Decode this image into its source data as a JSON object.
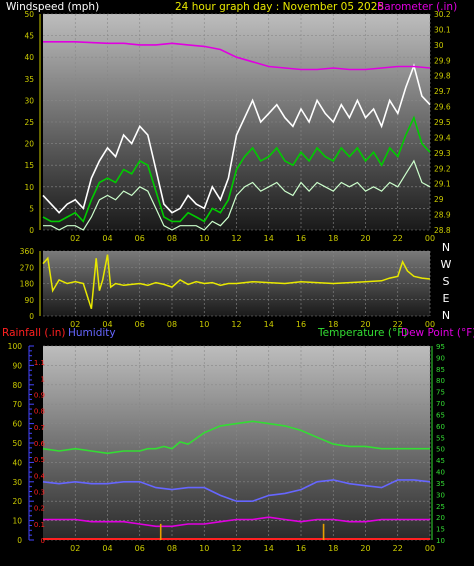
{
  "header": {
    "windspeed_label": "Windspeed (mph)",
    "graph_title": "24 hour graph day : November 05 2025",
    "barometer_label": "Barometer (.in)"
  },
  "colors": {
    "background": "#000000",
    "windspeed": "#ffffff",
    "windspeed_avg": "#00cc00",
    "wind_light": "#ccffcc",
    "barometer": "#e000e0",
    "direction": "#e8e800",
    "rainfall": "#ff2020",
    "humidity": "#6666ff",
    "temperature": "#33dd33",
    "dewpoint": "#e000e0",
    "rain_bar": "#e8a000",
    "axis_yellow": "#cccc00",
    "tick_blue": "#4444ff"
  },
  "chart_data": [
    {
      "type": "line",
      "title": "24 hour graph day : November 05 2025",
      "xlabel": "",
      "x_ticks": [
        "02",
        "04",
        "06",
        "08",
        "10",
        "12",
        "14",
        "16",
        "18",
        "20",
        "22",
        "00"
      ],
      "grid": true,
      "y_left": {
        "label": "Windspeed (mph)",
        "ticks": [
          0,
          5,
          10,
          15,
          20,
          25,
          30,
          35,
          40,
          45,
          50
        ],
        "range": [
          0,
          50
        ]
      },
      "y_right": {
        "label": "Barometer (.in)",
        "ticks": [
          "28.8",
          "28.9",
          "29",
          "29.1",
          "29.2",
          "29.3",
          "29.4",
          "29.5",
          "29.6",
          "29.7",
          "29.8",
          "29.9",
          "30",
          "30.1",
          "30.2"
        ],
        "range": [
          28.8,
          30.2
        ]
      },
      "series": [
        {
          "name": "Windspeed (mph)",
          "axis": "left",
          "x": [
            0,
            0.5,
            1,
            1.5,
            2,
            2.5,
            3,
            3.5,
            4,
            4.5,
            5,
            5.5,
            6,
            6.5,
            7,
            7.5,
            8,
            8.5,
            9,
            9.5,
            10,
            10.5,
            11,
            11.5,
            12,
            12.5,
            13,
            13.5,
            14,
            14.5,
            15,
            15.5,
            16,
            16.5,
            17,
            17.5,
            18,
            18.5,
            19,
            19.5,
            20,
            20.5,
            21,
            21.5,
            22,
            22.5,
            23,
            23.5,
            24
          ],
          "gust": [
            8,
            6,
            4,
            6,
            7,
            5,
            12,
            16,
            19,
            17,
            22,
            20,
            24,
            22,
            14,
            6,
            4,
            5,
            8,
            6,
            5,
            10,
            7,
            12,
            22,
            26,
            30,
            25,
            27,
            29,
            26,
            24,
            28,
            25,
            30,
            27,
            25,
            29,
            26,
            30,
            26,
            28,
            24,
            30,
            27,
            33,
            38,
            31,
            29
          ],
          "speed": [
            3,
            2,
            2,
            3,
            4,
            2,
            7,
            11,
            12,
            11,
            14,
            13,
            16,
            15,
            9,
            3,
            2,
            2,
            4,
            3,
            2,
            5,
            4,
            7,
            14,
            17,
            19,
            16,
            17,
            19,
            16,
            15,
            18,
            16,
            19,
            17,
            16,
            19,
            17,
            19,
            16,
            18,
            15,
            19,
            17,
            22,
            26,
            20,
            18
          ],
          "low": [
            1,
            1,
            0,
            1,
            1,
            0,
            3,
            7,
            8,
            7,
            9,
            8,
            10,
            9,
            5,
            1,
            0,
            1,
            1,
            1,
            0,
            2,
            1,
            3,
            8,
            10,
            11,
            9,
            10,
            11,
            9,
            8,
            11,
            9,
            11,
            10,
            9,
            11,
            10,
            11,
            9,
            10,
            9,
            11,
            10,
            13,
            16,
            11,
            10
          ]
        },
        {
          "name": "Barometer (.in)",
          "axis": "right",
          "x": [
            0,
            2,
            4,
            5,
            6,
            7,
            8,
            9,
            10,
            11,
            12,
            13,
            14,
            15,
            16,
            17,
            18,
            19,
            20,
            21,
            22,
            23,
            24
          ],
          "values": [
            30.02,
            30.02,
            30.01,
            30.01,
            30.0,
            30.0,
            30.01,
            30.0,
            29.99,
            29.97,
            29.92,
            29.89,
            29.86,
            29.85,
            29.84,
            29.84,
            29.85,
            29.84,
            29.84,
            29.85,
            29.86,
            29.86,
            29.85
          ]
        }
      ]
    },
    {
      "type": "line",
      "title": "",
      "x_ticks": [
        "02",
        "04",
        "06",
        "08",
        "10",
        "12",
        "14",
        "16",
        "18",
        "20",
        "22",
        "00"
      ],
      "grid": true,
      "y_left": {
        "label": "",
        "ticks": [
          0,
          90,
          180,
          270,
          360
        ],
        "range": [
          0,
          360
        ]
      },
      "y_right": {
        "label": "",
        "ticks": [
          "N",
          "W",
          "S",
          "E",
          "N"
        ]
      },
      "series": [
        {
          "name": "Wind direction",
          "x": [
            0,
            0.3,
            0.6,
            1,
            1.5,
            2,
            2.5,
            3,
            3.3,
            3.5,
            3.7,
            4,
            4.2,
            4.5,
            5,
            5.5,
            6,
            6.5,
            7,
            7.5,
            8,
            8.5,
            9,
            9.5,
            10,
            10.5,
            11,
            11.5,
            12,
            13,
            14,
            15,
            16,
            17,
            18,
            19,
            20,
            21,
            21.5,
            22,
            22.3,
            22.6,
            23,
            23.5,
            24
          ],
          "values": [
            290,
            320,
            140,
            200,
            180,
            190,
            180,
            40,
            320,
            140,
            200,
            340,
            160,
            180,
            170,
            175,
            180,
            170,
            185,
            175,
            160,
            200,
            175,
            190,
            180,
            185,
            170,
            180,
            180,
            190,
            185,
            180,
            190,
            185,
            180,
            185,
            190,
            195,
            210,
            220,
            300,
            250,
            220,
            210,
            205
          ]
        }
      ]
    },
    {
      "type": "line",
      "title": "",
      "x_ticks": [
        "02",
        "04",
        "06",
        "08",
        "10",
        "12",
        "14",
        "16",
        "18",
        "20",
        "22",
        "00"
      ],
      "grid": true,
      "legend": [
        "Rainfall (.in)",
        "Humidity",
        "Temperature (°F)",
        "Dew Point (°F)"
      ],
      "y_rain": {
        "label": "Rainfall (.in)",
        "ticks": [
          "0",
          "0.1",
          "0.2",
          "0.3",
          "0.4",
          "0.5",
          "0.6",
          "0.7",
          "0.8",
          "0.9",
          "1",
          "1.1"
        ],
        "range": [
          0,
          1.2
        ]
      },
      "y_humidity": {
        "label": "Humidity",
        "ticks": [
          0,
          10,
          20,
          30,
          40,
          50,
          60,
          70,
          80,
          90,
          100
        ],
        "range": [
          0,
          100
        ]
      },
      "y_temp": {
        "label": "Temperature (°F)",
        "ticks": [
          10,
          15,
          20,
          25,
          30,
          35,
          40,
          45,
          50,
          55,
          60,
          65,
          70,
          75,
          80,
          85,
          90,
          95
        ],
        "range": [
          10,
          95
        ]
      },
      "series": [
        {
          "name": "Temperature (°F)",
          "axis": "temp",
          "x": [
            0,
            1,
            2,
            3,
            4,
            5,
            6,
            6.5,
            7,
            7.5,
            8,
            8.5,
            9,
            10,
            11,
            12,
            13,
            14,
            15,
            16,
            17,
            18,
            19,
            20,
            21,
            22,
            23,
            24
          ],
          "values": [
            50,
            49,
            50,
            49,
            48,
            49,
            49,
            50,
            50,
            51,
            50,
            53,
            52,
            57,
            60,
            61,
            62,
            61,
            60,
            58,
            55,
            52,
            51,
            51,
            50,
            50,
            50,
            50
          ]
        },
        {
          "name": "Humidity",
          "axis": "humidity",
          "x": [
            0,
            1,
            2,
            3,
            4,
            5,
            6,
            7,
            8,
            9,
            10,
            11,
            12,
            13,
            14,
            15,
            16,
            17,
            18,
            19,
            20,
            21,
            22,
            23,
            24
          ],
          "values": [
            30,
            29,
            30,
            29,
            29,
            30,
            30,
            27,
            26,
            27,
            27,
            23,
            20,
            20,
            23,
            24,
            26,
            30,
            31,
            29,
            28,
            27,
            31,
            31,
            30
          ]
        },
        {
          "name": "Dew Point (°F)",
          "axis": "temp",
          "x": [
            0,
            1,
            2,
            3,
            4,
            5,
            6,
            7,
            8,
            9,
            10,
            11,
            12,
            13,
            14,
            15,
            16,
            17,
            18,
            19,
            20,
            21,
            22,
            23,
            24
          ],
          "values": [
            19,
            19,
            19,
            18,
            18,
            18,
            17,
            16,
            16,
            17,
            17,
            18,
            19,
            19,
            20,
            19,
            18,
            19,
            19,
            18,
            18,
            19,
            19,
            19,
            19
          ]
        },
        {
          "name": "Rainfall (.in)",
          "axis": "rain",
          "type": "bar",
          "x": [
            7.3,
            17.4
          ],
          "values": [
            0.1,
            0.1
          ]
        }
      ]
    }
  ]
}
